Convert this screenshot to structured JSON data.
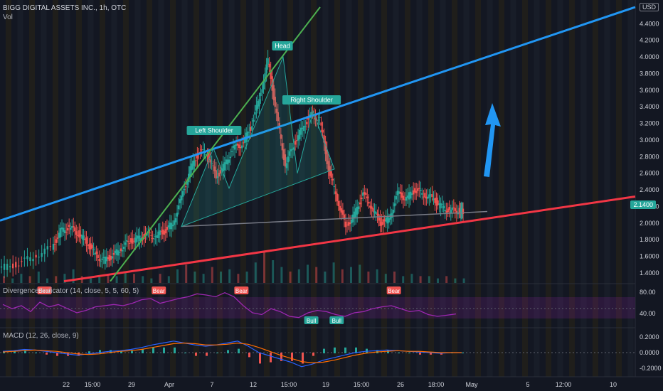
{
  "header": {
    "symbol_line": "BIGG DIGITAL ASSETS INC., 1h, OTC",
    "vol_label": "Vol",
    "currency": "USD",
    "last_price": "2.1400"
  },
  "pattern_labels": {
    "head": "Head",
    "left_shoulder": "Left Shoulder",
    "right_shoulder": "Right Shoulder"
  },
  "indicators": {
    "divergence": {
      "title": "Divergence Indicator (14, close, 5, 5, 60, 5)",
      "ticks": [
        "80.00",
        "40.00"
      ]
    },
    "macd": {
      "title": "MACD (12, 26, close, 9)",
      "ticks": [
        "0.2000",
        "0.0000",
        "-0.2000"
      ]
    },
    "signals": [
      {
        "type": "Bear",
        "x": 0.07
      },
      {
        "type": "Bear",
        "x": 0.25
      },
      {
        "type": "Bear",
        "x": 0.38
      },
      {
        "type": "Bull",
        "x": 0.49
      },
      {
        "type": "Bull",
        "x": 0.53
      },
      {
        "type": "Bear",
        "x": 0.62
      }
    ]
  },
  "colors": {
    "background": "#131722",
    "up": "#26a69a",
    "down": "#ef5350",
    "blue_trend": "#2196f3",
    "red_trend": "#f23645",
    "green_trend": "#4caf50",
    "rsi": "#9c27b0",
    "macd_line": "#2962ff",
    "signal_line": "#ff6d00"
  },
  "chart_data": {
    "type": "candlestick",
    "title": "BIGG DIGITAL ASSETS INC., 1h, OTC",
    "y_axis_ticks": [
      "4.4000",
      "4.2000",
      "4.0000",
      "3.8000",
      "3.6000",
      "3.4000",
      "3.2000",
      "3.0000",
      "2.8000",
      "2.6000",
      "2.4000",
      "2.2000",
      "2.0000",
      "1.8000",
      "1.6000",
      "1.4000"
    ],
    "ylim": [
      1.28,
      4.6
    ],
    "x_axis_ticks": [
      "22",
      "15:00",
      "29",
      "Apr",
      "7",
      "12",
      "15:00",
      "19",
      "15:00",
      "26",
      "18:00",
      "May",
      "5",
      "12:00",
      "10"
    ],
    "last_price": 2.14,
    "series": [
      {
        "name": "Price",
        "points": [
          [
            0,
            1.46
          ],
          [
            4,
            1.5
          ],
          [
            8,
            1.6
          ],
          [
            12,
            1.7
          ],
          [
            14,
            1.9
          ],
          [
            16,
            1.95
          ],
          [
            18,
            1.88
          ],
          [
            20,
            1.78
          ],
          [
            22,
            1.62
          ],
          [
            24,
            1.55
          ],
          [
            26,
            1.6
          ],
          [
            28,
            1.7
          ],
          [
            30,
            1.78
          ],
          [
            32,
            1.82
          ],
          [
            34,
            1.85
          ],
          [
            36,
            1.85
          ],
          [
            38,
            1.9
          ],
          [
            40,
            2.0
          ],
          [
            42,
            2.3
          ],
          [
            44,
            2.65
          ],
          [
            46,
            2.85
          ],
          [
            48,
            2.85
          ],
          [
            50,
            2.55
          ],
          [
            52,
            2.7
          ],
          [
            54,
            2.9
          ],
          [
            56,
            2.95
          ],
          [
            58,
            3.15
          ],
          [
            60,
            3.5
          ],
          [
            62,
            3.95
          ],
          [
            64,
            3.3
          ],
          [
            66,
            2.7
          ],
          [
            68,
            2.95
          ],
          [
            70,
            3.15
          ],
          [
            72,
            3.3
          ],
          [
            74,
            3.25
          ],
          [
            76,
            2.65
          ],
          [
            78,
            2.3
          ],
          [
            80,
            1.95
          ],
          [
            82,
            2.1
          ],
          [
            84,
            2.35
          ],
          [
            86,
            2.2
          ],
          [
            88,
            2.0
          ],
          [
            90,
            2.05
          ],
          [
            92,
            2.35
          ],
          [
            94,
            2.3
          ],
          [
            96,
            2.4
          ],
          [
            98,
            2.35
          ],
          [
            100,
            2.3
          ],
          [
            102,
            2.2
          ],
          [
            104,
            2.15
          ],
          [
            106,
            2.15
          ],
          [
            107,
            2.14
          ]
        ]
      }
    ],
    "volume": [
      3,
      2,
      4,
      3,
      5,
      2,
      3,
      4,
      6,
      3,
      2,
      3,
      4,
      3,
      5,
      4,
      3,
      2,
      4,
      3,
      6,
      8,
      5,
      4,
      7,
      5,
      6,
      4,
      5,
      9,
      14,
      10,
      7,
      5,
      6,
      8,
      7,
      5,
      9,
      6,
      7,
      8,
      5,
      6,
      4,
      5,
      3,
      4,
      3,
      3,
      2,
      3,
      2,
      2
    ],
    "rsi": [
      62,
      55,
      60,
      50,
      66,
      58,
      62,
      55,
      48,
      52,
      58,
      60,
      62,
      60,
      64,
      70,
      72,
      64,
      68,
      72,
      75,
      80,
      78,
      75,
      82,
      75,
      60,
      48,
      45,
      55,
      50,
      42,
      40,
      48,
      52,
      50,
      45,
      42,
      48,
      50,
      55,
      58,
      60,
      55,
      50,
      52,
      45,
      42,
      44,
      46
    ],
    "macd": [
      0.02,
      0.03,
      0.05,
      0.04,
      0.02,
      0.0,
      -0.02,
      -0.04,
      -0.02,
      0.0,
      0.02,
      0.03,
      0.05,
      0.08,
      0.12,
      0.15,
      0.18,
      0.15,
      0.12,
      0.1,
      0.12,
      0.15,
      0.18,
      0.1,
      0.0,
      -0.05,
      -0.1,
      -0.15,
      -0.22,
      -0.18,
      -0.12,
      -0.08,
      -0.04,
      0.0,
      0.02,
      0.03,
      0.04,
      0.03,
      0.02,
      0.01,
      0.0,
      -0.01,
      0.0,
      0.0
    ],
    "signal": [
      0.01,
      0.02,
      0.03,
      0.04,
      0.03,
      0.02,
      0.0,
      -0.02,
      -0.03,
      -0.02,
      0.0,
      0.02,
      0.03,
      0.05,
      0.08,
      0.11,
      0.14,
      0.15,
      0.14,
      0.12,
      0.12,
      0.13,
      0.15,
      0.13,
      0.08,
      0.02,
      -0.04,
      -0.09,
      -0.14,
      -0.16,
      -0.15,
      -0.12,
      -0.08,
      -0.04,
      -0.01,
      0.01,
      0.02,
      0.03,
      0.02,
      0.02,
      0.01,
      0.0,
      0.0,
      0.0
    ]
  }
}
